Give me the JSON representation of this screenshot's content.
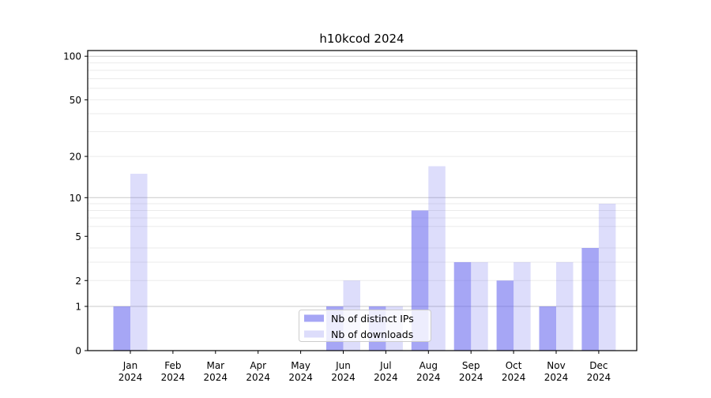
{
  "title": "h10kcod 2024",
  "chart_data": {
    "type": "bar",
    "title": "h10kcod 2024",
    "categories": [
      "Jan",
      "Feb",
      "Mar",
      "Apr",
      "May",
      "Jun",
      "Jul",
      "Aug",
      "Sep",
      "Oct",
      "Nov",
      "Dec"
    ],
    "year": "2024",
    "series": [
      {
        "name": "Nb of distinct IPs",
        "color": "rgba(102,102,238,0.58)",
        "values": [
          1,
          0,
          0,
          0,
          0,
          1,
          1,
          8,
          3,
          2,
          1,
          4
        ]
      },
      {
        "name": "Nb of downloads",
        "color": "rgba(102,102,238,0.22)",
        "values": [
          15,
          0,
          0,
          0,
          0,
          2,
          1,
          17,
          3,
          3,
          3,
          9
        ]
      }
    ],
    "yscale": "log(1+v)",
    "ylim": [
      0,
      107
    ],
    "yticks_labeled": [
      0,
      1,
      2,
      5,
      10,
      20,
      50,
      100
    ],
    "ygrid_major": [
      1,
      10,
      100
    ],
    "ygrid_minor": [
      2,
      3,
      4,
      6,
      7,
      8,
      9,
      20,
      30,
      40,
      50,
      60,
      70,
      80,
      90
    ],
    "grid": true,
    "legend_position": "lower center"
  },
  "colors": {
    "bar_distinct_ips": "rgba(102,102,238,0.58)",
    "bar_downloads": "rgba(102,102,238,0.22)",
    "grid_major": "#c9c9c9",
    "grid_minor": "#ebebeb",
    "axis": "#000000",
    "background": "#ffffff"
  }
}
